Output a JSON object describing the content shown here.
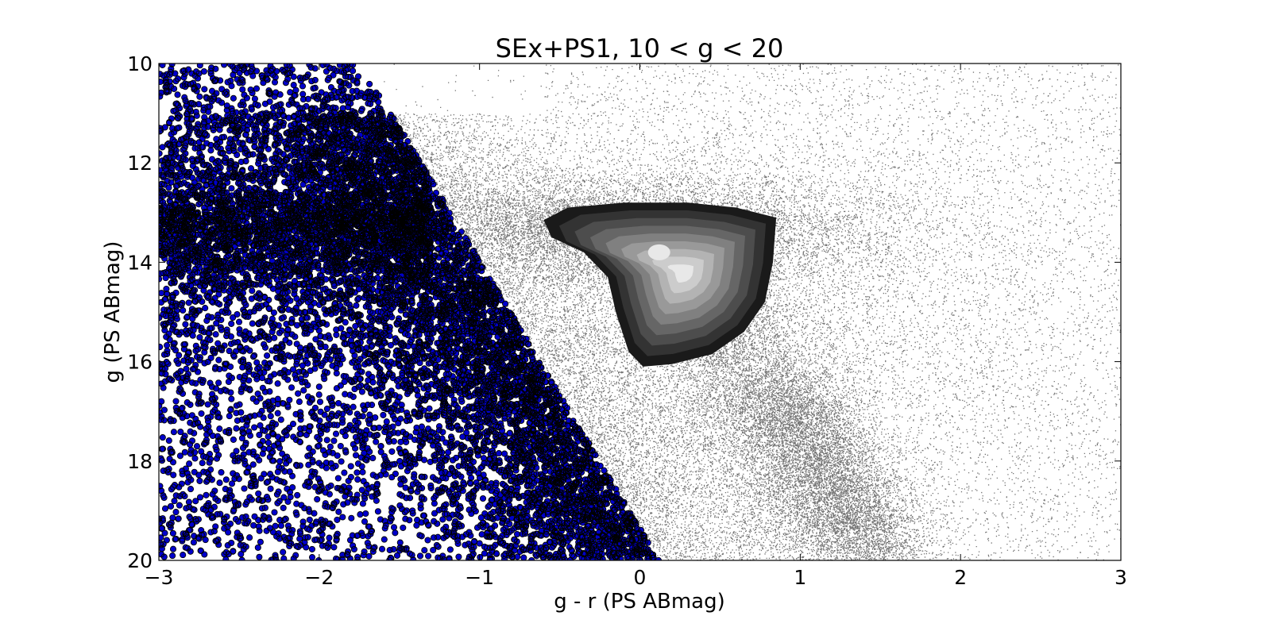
{
  "chart_data": {
    "type": "scatter",
    "title": "SEx+PS1, 10 < g < 20",
    "xlabel": "g - r (PS ABmag)",
    "ylabel": "g (PS ABmag)",
    "xlim": [
      -3,
      3
    ],
    "ylim": [
      20,
      10
    ],
    "y_axis_inverted": true,
    "grid": false,
    "legend": "none",
    "xticks": [
      -3,
      -2,
      -1,
      0,
      1,
      2,
      3
    ],
    "xtick_labels": [
      "−3",
      "−2",
      "−1",
      "0",
      "1",
      "2",
      "3"
    ],
    "yticks": [
      10,
      12,
      14,
      16,
      18,
      20
    ],
    "ytick_labels": [
      "10",
      "12",
      "14",
      "16",
      "18",
      "20"
    ],
    "layers": [
      {
        "kind": "scatter-points",
        "color": "#000000",
        "description_visible": "dense black background points"
      },
      {
        "kind": "scatter-markers",
        "color": "#0000cc",
        "edge_color": "#000000",
        "region_boundary": [
          [
            -1.55,
            11.0
          ],
          [
            0.12,
            20.0
          ]
        ],
        "x_min": -3
      },
      {
        "kind": "density-contours",
        "colors": [
          "#1a1a1a",
          "#333333",
          "#4d4d4d",
          "#666666",
          "#808080",
          "#999999",
          "#b3b3b3",
          "#cccccc",
          "#e8e8e8"
        ],
        "peak": [
          0.45,
          14.2
        ]
      }
    ]
  }
}
